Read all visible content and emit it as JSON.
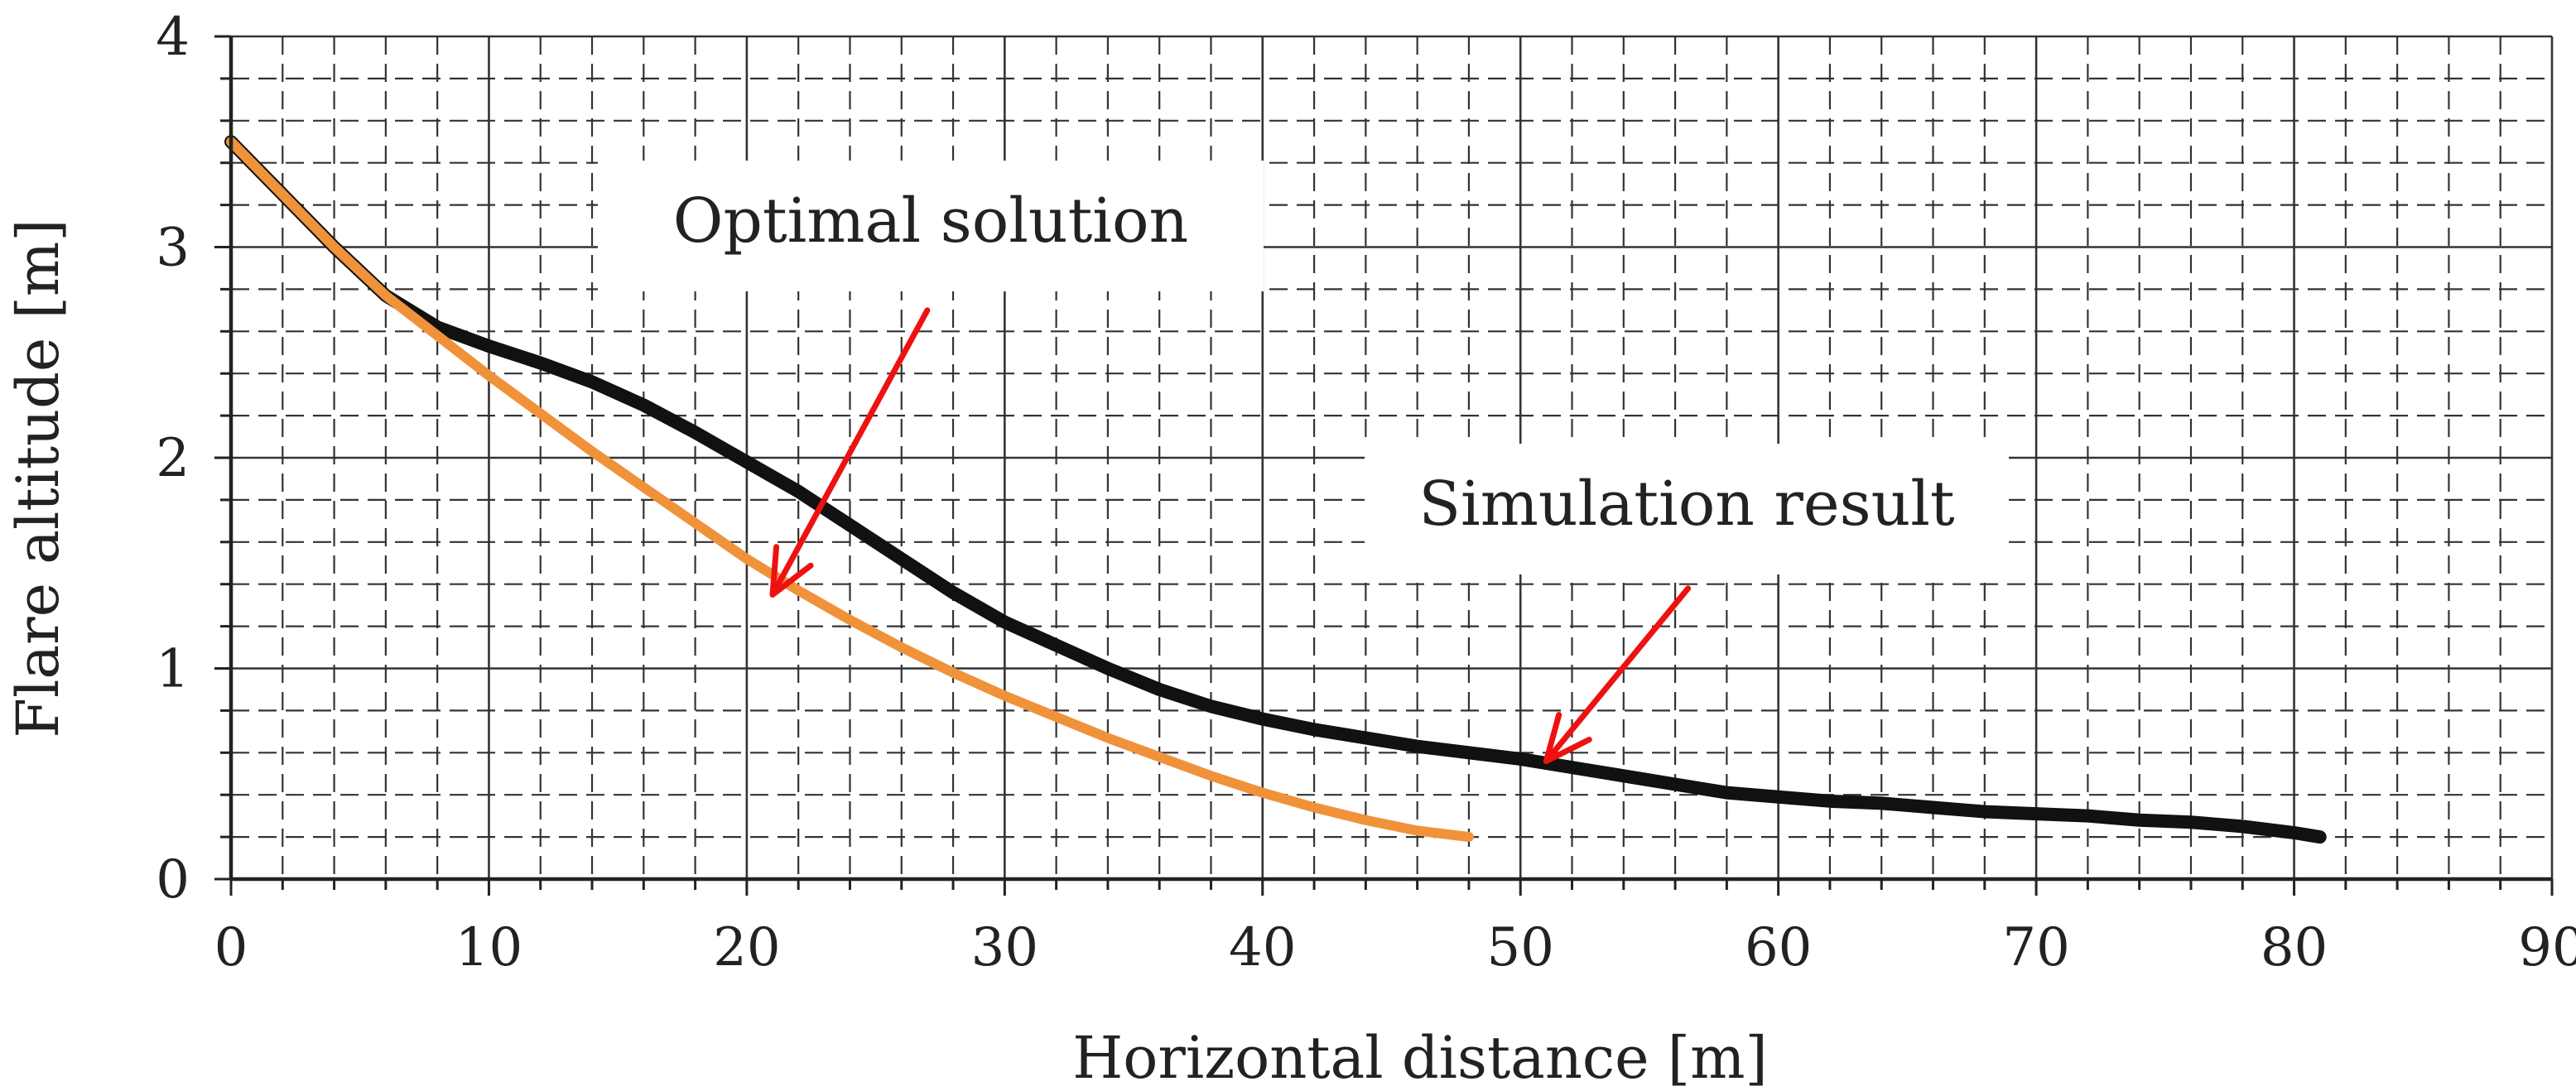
{
  "chart_data": {
    "type": "line",
    "title": "",
    "xlabel": "Horizontal distance [m]",
    "ylabel": "Flare altitude [m]",
    "xlim": [
      0,
      90
    ],
    "ylim": [
      0,
      4
    ],
    "x_ticks": [
      0,
      10,
      20,
      30,
      40,
      50,
      60,
      70,
      80,
      90
    ],
    "y_ticks": [
      0,
      1,
      2,
      3,
      4
    ],
    "x_minor_step": 2,
    "y_minor_step": 0.2,
    "grid": true,
    "series": [
      {
        "name": "Simulation result",
        "color": "#111111",
        "x": [
          0,
          2,
          4,
          6,
          8,
          10,
          12,
          14,
          16,
          18,
          20,
          22,
          24,
          26,
          28,
          30,
          32,
          34,
          36,
          38,
          40,
          42,
          44,
          46,
          48,
          50,
          52,
          54,
          56,
          58,
          60,
          62,
          64,
          66,
          68,
          70,
          72,
          74,
          76,
          78,
          80,
          81
        ],
        "y": [
          3.5,
          3.25,
          3.0,
          2.77,
          2.62,
          2.53,
          2.45,
          2.36,
          2.25,
          2.12,
          1.98,
          1.84,
          1.68,
          1.52,
          1.36,
          1.22,
          1.11,
          1.0,
          0.9,
          0.82,
          0.76,
          0.71,
          0.67,
          0.63,
          0.6,
          0.57,
          0.53,
          0.49,
          0.45,
          0.41,
          0.39,
          0.37,
          0.36,
          0.34,
          0.32,
          0.31,
          0.3,
          0.28,
          0.27,
          0.25,
          0.22,
          0.2
        ]
      },
      {
        "name": "Optimal solution",
        "color": "#f0923a",
        "x": [
          0,
          2,
          4,
          6,
          8,
          10,
          12,
          14,
          16,
          18,
          20,
          22,
          24,
          26,
          28,
          30,
          32,
          34,
          36,
          38,
          40,
          42,
          44,
          46,
          48
        ],
        "y": [
          3.5,
          3.25,
          3.0,
          2.77,
          2.58,
          2.39,
          2.21,
          2.03,
          1.86,
          1.69,
          1.52,
          1.37,
          1.23,
          1.1,
          0.98,
          0.87,
          0.77,
          0.67,
          0.58,
          0.49,
          0.41,
          0.34,
          0.28,
          0.23,
          0.2
        ]
      }
    ],
    "annotations": [
      {
        "text": "Optimal solution",
        "target": [
          21,
          1.35
        ],
        "tail": [
          27,
          2.7
        ]
      },
      {
        "text": "Simulation result",
        "target": [
          51,
          0.56
        ],
        "tail": [
          56.5,
          1.38
        ]
      }
    ]
  },
  "colors": {
    "arrow": "#ee1111",
    "grid": "#333333",
    "axis": "#222222"
  }
}
